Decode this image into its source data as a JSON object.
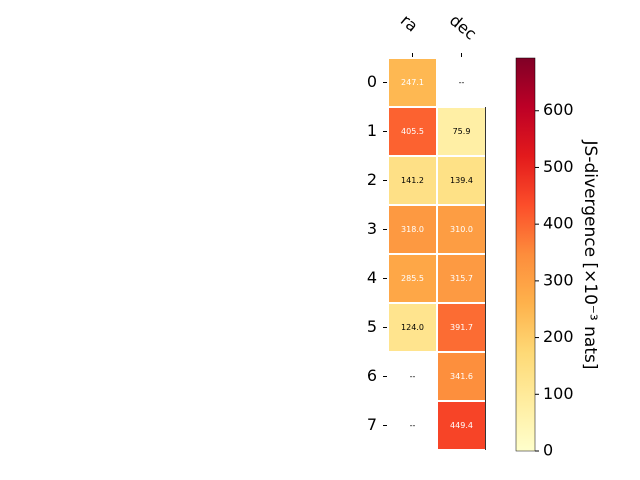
{
  "chart_data": {
    "type": "heatmap",
    "columns": [
      "ra",
      "dec"
    ],
    "rows": [
      "0",
      "1",
      "2",
      "3",
      "4",
      "5",
      "6",
      "7"
    ],
    "values": [
      [
        247.1,
        null
      ],
      [
        405.5,
        75.9
      ],
      [
        141.2,
        139.4
      ],
      [
        318.0,
        310.0
      ],
      [
        285.5,
        315.7
      ],
      [
        124.0,
        391.7
      ],
      [
        null,
        341.6
      ],
      [
        null,
        449.4
      ]
    ],
    "cell_labels": [
      [
        "247.1",
        "--"
      ],
      [
        "405.5",
        "75.9"
      ],
      [
        "141.2",
        "139.4"
      ],
      [
        "318.0",
        "310.0"
      ],
      [
        "285.5",
        "315.7"
      ],
      [
        "124.0",
        "391.7"
      ],
      [
        "--",
        "341.6"
      ],
      [
        "--",
        "449.4"
      ]
    ],
    "colorbar": {
      "label": "JS-divergence [×10⁻³ nats]",
      "range": [
        0,
        693
      ],
      "ticks": [
        0,
        100,
        200,
        300,
        400,
        500,
        600
      ],
      "tick_labels": [
        "0",
        "100",
        "200",
        "300",
        "400",
        "500",
        "600"
      ],
      "colormap": "YlOrRd"
    }
  }
}
